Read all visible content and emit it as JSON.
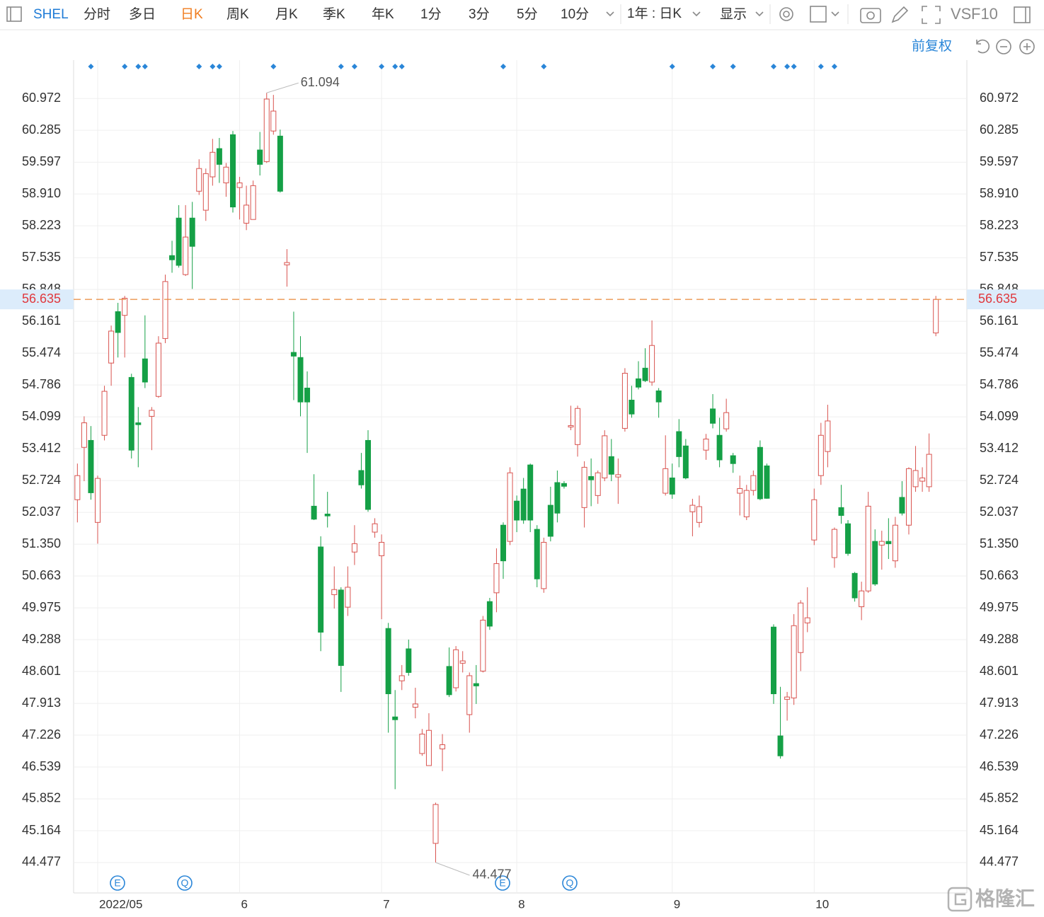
{
  "toolbar": {
    "symbol": "SHEL",
    "tabs": [
      "分时",
      "多日",
      "日K",
      "周K",
      "月K",
      "季K",
      "年K",
      "1分",
      "3分",
      "5分",
      "10分"
    ],
    "active_tab": "日K",
    "range": "1年 : 日K",
    "display": "显示",
    "vs": "VS",
    "f10": "F10"
  },
  "adjust": "前复权",
  "watermark": "格隆汇",
  "chart_data": {
    "type": "candlestick",
    "categories": [
      null,
      null,
      null,
      "2022/05",
      null,
      null,
      null,
      null,
      null,
      null,
      null,
      null,
      null,
      null,
      null,
      null,
      null,
      null,
      null,
      null,
      null,
      null,
      null,
      null,
      "6",
      null,
      null,
      null,
      null,
      null,
      null,
      null,
      null,
      null,
      null,
      null,
      null,
      null,
      null,
      null,
      null,
      null,
      null,
      null,
      null,
      "7",
      null,
      null,
      null,
      null,
      null,
      null,
      null,
      null,
      null,
      null,
      null,
      null,
      null,
      null,
      null,
      null,
      null,
      null,
      null,
      "8",
      null,
      null,
      null,
      null,
      null,
      null,
      null,
      null,
      null,
      null,
      null,
      null,
      null,
      null,
      null,
      null,
      null,
      null,
      null,
      null,
      null,
      null,
      "9",
      null,
      null,
      null,
      null,
      null,
      null,
      null,
      null,
      null,
      null,
      null,
      null,
      null,
      null,
      null,
      null,
      null,
      null,
      null,
      null,
      "10",
      null,
      null,
      null,
      null,
      null,
      null,
      null,
      null,
      null,
      null,
      null,
      null,
      null,
      null,
      null,
      null,
      null,
      null
    ],
    "open": [
      52.31,
      53.44,
      53.59,
      51.82,
      53.7,
      55.26,
      56.37,
      56.29,
      54.95,
      53.97,
      55.35,
      54.11,
      54.54,
      55.79,
      57.58,
      58.39,
      57.17,
      58.39,
      58.97,
      58.56,
      59.28,
      59.89,
      59.15,
      60.19,
      59.05,
      58.28,
      58.36,
      59.86,
      59.61,
      60.27,
      60.16,
      57.38,
      55.49,
      55.38,
      54.72,
      52.17,
      51.29,
      52.0,
      50.26,
      50.36,
      49.99,
      51.18,
      52.94,
      53.59,
      51.61,
      51.1,
      49.53,
      47.62,
      48.4,
      49.09,
      47.83,
      46.83,
      46.57,
      44.89,
      46.93,
      48.71,
      48.25,
      48.78,
      47.67,
      48.34,
      48.61,
      50.11,
      50.3,
      51.76,
      51.41,
      52.28,
      52.54,
      53.06,
      51.67,
      50.39,
      52.19,
      52.68,
      52.66,
      53.88,
      53.5,
      52.14,
      52.81,
      52.4,
      52.78,
      53.24,
      52.8,
      53.85,
      54.46,
      54.92,
      55.15,
      54.85,
      54.66,
      52.45,
      52.78,
      53.78,
      53.47,
      52.05,
      51.82,
      53.38,
      54.27,
      53.7,
      53.84,
      53.26,
      52.45,
      51.94,
      52.51,
      53.44,
      53.04,
      49.56,
      47.21,
      48.0,
      48.03,
      49.01,
      49.65,
      51.44,
      52.83,
      53.35,
      51.06,
      52.14,
      51.79,
      50.72,
      50.0,
      50.34,
      51.41,
      51.33,
      51.41,
      50.99,
      52.36,
      51.76,
      52.59,
      52.71,
      52.59,
      55.91
    ],
    "high": [
      53.09,
      54.11,
      53.9,
      52.83,
      54.77,
      56.07,
      56.56,
      56.71,
      55.03,
      54.31,
      56.29,
      54.31,
      55.84,
      57.17,
      57.9,
      58.67,
      58.67,
      58.74,
      59.66,
      59.46,
      60.1,
      60.12,
      59.58,
      60.27,
      59.28,
      59.09,
      59.2,
      60.25,
      61.094,
      61.05,
      60.3,
      57.72,
      56.37,
      55.84,
      55.08,
      52.86,
      51.52,
      52.48,
      50.87,
      50.42,
      50.87,
      51.76,
      53.32,
      53.81,
      51.91,
      51.56,
      49.65,
      48.2,
      48.74,
      49.29,
      48.25,
      47.36,
      47.7,
      45.77,
      47.25,
      49.12,
      49.15,
      49.04,
      48.58,
      48.74,
      49.8,
      50.19,
      51.26,
      51.82,
      53.01,
      52.4,
      52.78,
      53.09,
      51.76,
      51.49,
      52.59,
      52.94,
      52.71,
      54.34,
      54.34,
      53.14,
      53.2,
      52.94,
      53.81,
      53.62,
      53.2,
      55.15,
      54.77,
      55.3,
      55.58,
      56.18,
      54.72,
      53.7,
      53.09,
      54.05,
      53.62,
      52.33,
      52.4,
      53.73,
      54.59,
      54.08,
      54.49,
      53.32,
      52.83,
      52.63,
      52.94,
      53.59,
      53.09,
      49.62,
      48.27,
      48.16,
      49.84,
      50.14,
      50.42,
      52.55,
      53.97,
      54.36,
      51.71,
      52.63,
      51.87,
      50.75,
      50.54,
      52.48,
      51.67,
      51.64,
      51.91,
      51.94,
      52.71,
      53.01,
      53.47,
      53.01,
      53.74,
      56.71
    ],
    "low": [
      51.82,
      52.71,
      52.31,
      51.36,
      53.59,
      54.77,
      55.38,
      55.38,
      53.2,
      53.01,
      54.72,
      53.38,
      54.51,
      55.69,
      57.21,
      57.32,
      57.14,
      56.86,
      58.89,
      58.33,
      59.09,
      59.15,
      58.85,
      58.51,
      58.36,
      58.13,
      58.36,
      59.31,
      59.58,
      60.19,
      58.94,
      56.91,
      54.46,
      54.11,
      53.32,
      51.87,
      49.04,
      51.71,
      49.96,
      48.16,
      49.8,
      50.9,
      52.55,
      52.05,
      51.49,
      49.73,
      47.28,
      46.06,
      48.2,
      48.51,
      47.59,
      46.78,
      46.57,
      44.477,
      46.45,
      48.05,
      48.17,
      48.58,
      47.28,
      47.9,
      48.58,
      49.5,
      49.88,
      50.6,
      51.33,
      51.61,
      51.79,
      51.61,
      50.42,
      50.3,
      51.41,
      51.82,
      52.55,
      53.81,
      53.24,
      51.71,
      52.17,
      52.22,
      52.71,
      52.71,
      52.22,
      53.78,
      54.08,
      54.69,
      54.85,
      54.77,
      54.08,
      52.4,
      52.33,
      53.01,
      52.75,
      51.52,
      51.71,
      53.17,
      53.85,
      53.01,
      53.78,
      52.89,
      51.97,
      51.87,
      52.4,
      52.3,
      52.33,
      47.9,
      46.72,
      47.54,
      47.88,
      48.61,
      49.45,
      51.33,
      52.63,
      53.01,
      50.84,
      51.79,
      51.1,
      50.11,
      49.71,
      50.3,
      50.45,
      50.8,
      51.03,
      50.84,
      51.97,
      51.56,
      52.48,
      52.48,
      52.48,
      55.84
    ],
    "close": [
      52.83,
      53.97,
      52.46,
      52.77,
      54.65,
      55.95,
      55.92,
      56.66,
      53.38,
      53.93,
      54.85,
      54.24,
      55.69,
      57.02,
      57.49,
      57.37,
      57.98,
      57.78,
      59.46,
      59.35,
      59.81,
      59.55,
      59.49,
      58.63,
      59.15,
      58.67,
      59.09,
      59.55,
      60.96,
      60.7,
      58.97,
      57.43,
      55.41,
      54.42,
      54.42,
      51.89,
      49.45,
      51.96,
      50.37,
      48.73,
      50.42,
      51.36,
      52.63,
      52.1,
      51.79,
      51.39,
      48.12,
      47.56,
      48.51,
      48.58,
      47.9,
      47.25,
      47.33,
      45.73,
      47.02,
      48.1,
      49.07,
      48.83,
      48.51,
      48.29,
      49.71,
      49.58,
      50.93,
      50.99,
      52.89,
      51.87,
      51.87,
      51.87,
      50.6,
      51.39,
      51.52,
      52.02,
      52.6,
      53.91,
      54.28,
      53.01,
      52.74,
      52.89,
      53.69,
      52.86,
      52.85,
      55.04,
      54.16,
      54.74,
      54.88,
      55.64,
      54.42,
      52.98,
      52.43,
      53.24,
      52.78,
      52.19,
      52.16,
      53.62,
      53.96,
      53.17,
      54.19,
      53.09,
      52.55,
      52.51,
      52.83,
      52.33,
      52.34,
      48.12,
      46.78,
      48.05,
      49.59,
      50.08,
      49.76,
      52.31,
      53.7,
      54.01,
      51.67,
      51.97,
      51.15,
      50.19,
      50.34,
      52.17,
      50.49,
      51.41,
      51.36,
      51.76,
      52.02,
      52.98,
      52.94,
      52.78,
      53.29,
      56.635
    ],
    "up_color": "#d9534f",
    "down_color": "#15a046",
    "last_color": "#e8883a",
    "ylim": [
      43.82,
      61.8
    ],
    "yticks": [
      44.477,
      45.164,
      45.852,
      46.539,
      47.226,
      47.913,
      48.601,
      49.288,
      49.975,
      50.663,
      {
        "value": 51.35,
        "label": "51.350"
      },
      52.037,
      52.724,
      53.412,
      54.099,
      54.786,
      55.474,
      56.161,
      56.848,
      57.535,
      58.223,
      {
        "value": 58.91,
        "label": "58.910"
      },
      59.597,
      60.285,
      60.972
    ],
    "grid": true,
    "event_icons": [
      "E",
      "Q",
      "E",
      "Q"
    ]
  }
}
